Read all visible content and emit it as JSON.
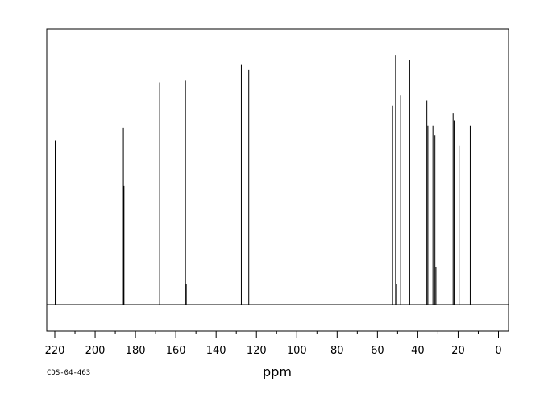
{
  "chart_data": {
    "type": "line",
    "title": "",
    "xlabel": "ppm",
    "ylabel": "",
    "spectrum_id": "CDS-04-463",
    "xlim": [
      224,
      -5
    ],
    "x_reversed": true,
    "ylim": [
      0,
      1
    ],
    "grid": false,
    "x_ticks": [
      220,
      200,
      180,
      160,
      140,
      120,
      100,
      80,
      60,
      40,
      20,
      0
    ],
    "peaks": [
      {
        "x": 219.8,
        "y": 0.65
      },
      {
        "x": 219.4,
        "y": 0.43
      },
      {
        "x": 186.0,
        "y": 0.7
      },
      {
        "x": 185.7,
        "y": 0.47
      },
      {
        "x": 168.0,
        "y": 0.88
      },
      {
        "x": 155.2,
        "y": 0.89
      },
      {
        "x": 154.8,
        "y": 0.08
      },
      {
        "x": 127.5,
        "y": 0.95
      },
      {
        "x": 123.8,
        "y": 0.93
      },
      {
        "x": 52.5,
        "y": 0.79
      },
      {
        "x": 51.0,
        "y": 0.99
      },
      {
        "x": 50.5,
        "y": 0.08
      },
      {
        "x": 48.5,
        "y": 0.83
      },
      {
        "x": 44.0,
        "y": 0.97
      },
      {
        "x": 35.5,
        "y": 0.81
      },
      {
        "x": 35.0,
        "y": 0.71
      },
      {
        "x": 32.5,
        "y": 0.71
      },
      {
        "x": 31.5,
        "y": 0.67
      },
      {
        "x": 31.0,
        "y": 0.15
      },
      {
        "x": 22.5,
        "y": 0.76
      },
      {
        "x": 22.0,
        "y": 0.73
      },
      {
        "x": 19.5,
        "y": 0.63
      },
      {
        "x": 14.0,
        "y": 0.71
      }
    ]
  }
}
